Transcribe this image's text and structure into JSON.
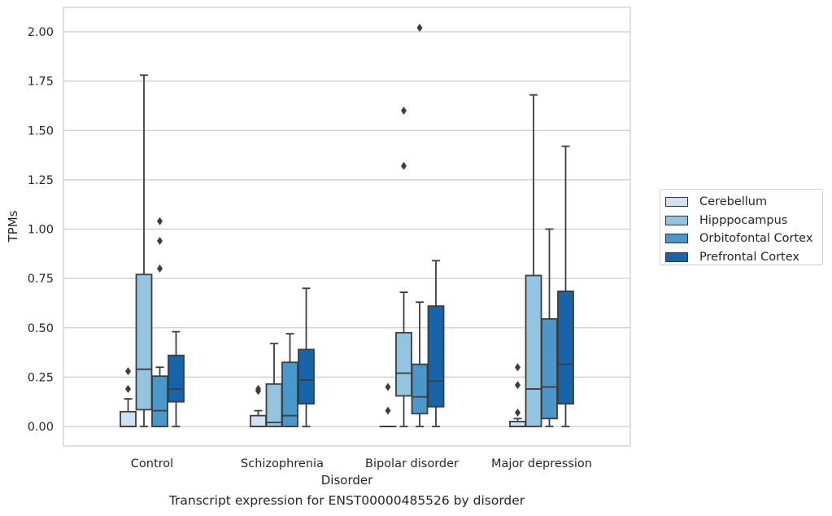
{
  "chart_data": {
    "type": "box",
    "title": "Transcript expression for ENST00000485526 by disorder",
    "xlabel": "Disorder",
    "ylabel": "TPMs",
    "ylim": [
      -0.1,
      2.12
    ],
    "yticks": [
      0.0,
      0.25,
      0.5,
      0.75,
      1.0,
      1.25,
      1.5,
      1.75,
      2.0
    ],
    "ytick_labels": [
      "0.00",
      "0.25",
      "0.50",
      "0.75",
      "1.00",
      "1.25",
      "1.50",
      "1.75",
      "2.00"
    ],
    "grid": "horizontal",
    "legend_placement": "right",
    "categories": [
      "Control",
      "Schizophrenia",
      "Bipolar disorder",
      "Major depression"
    ],
    "series": [
      {
        "name": "Cerebellum",
        "color": "#d0e1f2",
        "boxes": [
          {
            "whisker_low": 0.0,
            "q1": 0.0,
            "median": 0.0,
            "q3": 0.075,
            "whisker_high": 0.14,
            "outliers": [
              0.19,
              0.28
            ]
          },
          {
            "whisker_low": 0.0,
            "q1": 0.0,
            "median": 0.0,
            "q3": 0.055,
            "whisker_high": 0.08,
            "outliers": [
              0.18,
              0.19
            ]
          },
          {
            "whisker_low": 0.0,
            "q1": 0.0,
            "median": 0.0,
            "q3": 0.0,
            "whisker_high": 0.0,
            "outliers": [
              0.08,
              0.2
            ]
          },
          {
            "whisker_low": 0.0,
            "q1": 0.0,
            "median": 0.0,
            "q3": 0.025,
            "whisker_high": 0.04,
            "outliers": [
              0.07,
              0.21,
              0.3
            ]
          }
        ]
      },
      {
        "name": "Hipppocampus",
        "color": "#94c4df",
        "boxes": [
          {
            "whisker_low": 0.0,
            "q1": 0.085,
            "median": 0.29,
            "q3": 0.77,
            "whisker_high": 1.78,
            "outliers": []
          },
          {
            "whisker_low": 0.0,
            "q1": 0.0,
            "median": 0.02,
            "q3": 0.215,
            "whisker_high": 0.42,
            "outliers": []
          },
          {
            "whisker_low": 0.0,
            "q1": 0.155,
            "median": 0.27,
            "q3": 0.475,
            "whisker_high": 0.68,
            "outliers": [
              1.32,
              1.6
            ]
          },
          {
            "whisker_low": 0.0,
            "q1": 0.0,
            "median": 0.19,
            "q3": 0.765,
            "whisker_high": 1.68,
            "outliers": []
          }
        ]
      },
      {
        "name": "Orbitofontal Cortex",
        "color": "#4a98c9",
        "boxes": [
          {
            "whisker_low": 0.0,
            "q1": 0.0,
            "median": 0.08,
            "q3": 0.255,
            "whisker_high": 0.3,
            "outliers": [
              0.8,
              0.94,
              1.04
            ]
          },
          {
            "whisker_low": 0.0,
            "q1": 0.0,
            "median": 0.055,
            "q3": 0.325,
            "whisker_high": 0.47,
            "outliers": []
          },
          {
            "whisker_low": 0.0,
            "q1": 0.065,
            "median": 0.15,
            "q3": 0.315,
            "whisker_high": 0.63,
            "outliers": [
              2.02
            ]
          },
          {
            "whisker_low": 0.0,
            "q1": 0.04,
            "median": 0.2,
            "q3": 0.545,
            "whisker_high": 1.0,
            "outliers": []
          }
        ]
      },
      {
        "name": "Prefrontal Cortex",
        "color": "#1764ab",
        "boxes": [
          {
            "whisker_low": 0.0,
            "q1": 0.125,
            "median": 0.19,
            "q3": 0.36,
            "whisker_high": 0.48,
            "outliers": []
          },
          {
            "whisker_low": 0.0,
            "q1": 0.115,
            "median": 0.235,
            "q3": 0.39,
            "whisker_high": 0.7,
            "outliers": []
          },
          {
            "whisker_low": 0.0,
            "q1": 0.1,
            "median": 0.23,
            "q3": 0.61,
            "whisker_high": 0.84,
            "outliers": []
          },
          {
            "whisker_low": 0.0,
            "q1": 0.115,
            "median": 0.315,
            "q3": 0.685,
            "whisker_high": 1.42,
            "outliers": []
          }
        ]
      }
    ]
  }
}
